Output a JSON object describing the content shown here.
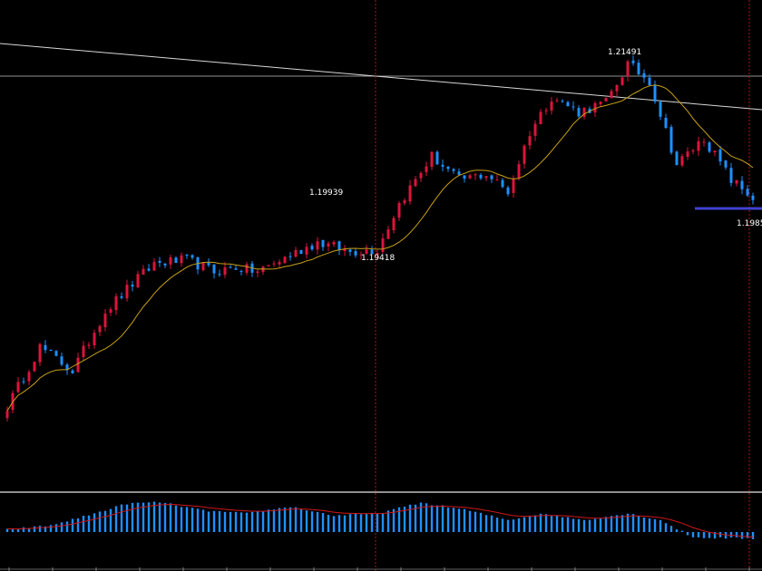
{
  "chart_data": {
    "type": "candlestick",
    "colors": {
      "background": "#000000",
      "bull": "#dc143c",
      "bear": "#1e90ff",
      "ma": "#c8a016",
      "trendline": "#d8d8d8",
      "horizontal_level": "#c0c0c0",
      "support_line": "#4040d0",
      "vertical_marker": "#b01818",
      "separator": "#c0c0c0",
      "osc_hist": "#1e90ff",
      "osc_signal": "#d01818"
    },
    "price_labels": [
      {
        "name": "peak-2",
        "text": "1.21491"
      },
      {
        "name": "peak-1",
        "text": "1.19939"
      },
      {
        "name": "low-1",
        "text": "1.19418"
      },
      {
        "name": "support",
        "text": "1.1985"
      }
    ],
    "anchors": [
      {
        "i": 0,
        "c": 1.1855
      },
      {
        "i": 6,
        "c": 1.1905
      },
      {
        "i": 12,
        "c": 1.1885
      },
      {
        "i": 18,
        "c": 1.1935
      },
      {
        "i": 23,
        "c": 1.1958
      },
      {
        "i": 27,
        "c": 1.1975
      },
      {
        "i": 33,
        "c": 1.1978
      },
      {
        "i": 38,
        "c": 1.1968
      },
      {
        "i": 42,
        "c": 1.1972
      },
      {
        "i": 46,
        "c": 1.1968
      },
      {
        "i": 52,
        "c": 1.1982
      },
      {
        "i": 57,
        "c": 1.1993
      },
      {
        "i": 63,
        "c": 1.1985
      },
      {
        "i": 68,
        "c": 1.1987
      },
      {
        "i": 72,
        "c": 1.2025
      },
      {
        "i": 78,
        "c": 1.2065
      },
      {
        "i": 83,
        "c": 1.2045
      },
      {
        "i": 88,
        "c": 1.205
      },
      {
        "i": 92,
        "c": 1.2035
      },
      {
        "i": 96,
        "c": 1.2085
      },
      {
        "i": 100,
        "c": 1.2115
      },
      {
        "i": 105,
        "c": 1.2102
      },
      {
        "i": 110,
        "c": 1.211
      },
      {
        "i": 114,
        "c": 1.2142
      },
      {
        "i": 118,
        "c": 1.2128
      },
      {
        "i": 123,
        "c": 1.2058
      },
      {
        "i": 128,
        "c": 1.208
      },
      {
        "i": 133,
        "c": 1.2045
      },
      {
        "i": 137,
        "c": 1.203
      }
    ],
    "osc_anchors": [
      {
        "i": 0,
        "v": 0.08
      },
      {
        "i": 8,
        "v": 0.22
      },
      {
        "i": 16,
        "v": 0.62
      },
      {
        "i": 22,
        "v": 0.95
      },
      {
        "i": 28,
        "v": 1.0
      },
      {
        "i": 36,
        "v": 0.72
      },
      {
        "i": 44,
        "v": 0.62
      },
      {
        "i": 52,
        "v": 0.85
      },
      {
        "i": 60,
        "v": 0.55
      },
      {
        "i": 68,
        "v": 0.62
      },
      {
        "i": 76,
        "v": 0.98
      },
      {
        "i": 84,
        "v": 0.75
      },
      {
        "i": 92,
        "v": 0.4
      },
      {
        "i": 98,
        "v": 0.62
      },
      {
        "i": 106,
        "v": 0.4
      },
      {
        "i": 114,
        "v": 0.62
      },
      {
        "i": 120,
        "v": 0.4
      },
      {
        "i": 126,
        "v": -0.18
      },
      {
        "i": 132,
        "v": -0.2
      },
      {
        "i": 137,
        "v": -0.22
      }
    ]
  }
}
